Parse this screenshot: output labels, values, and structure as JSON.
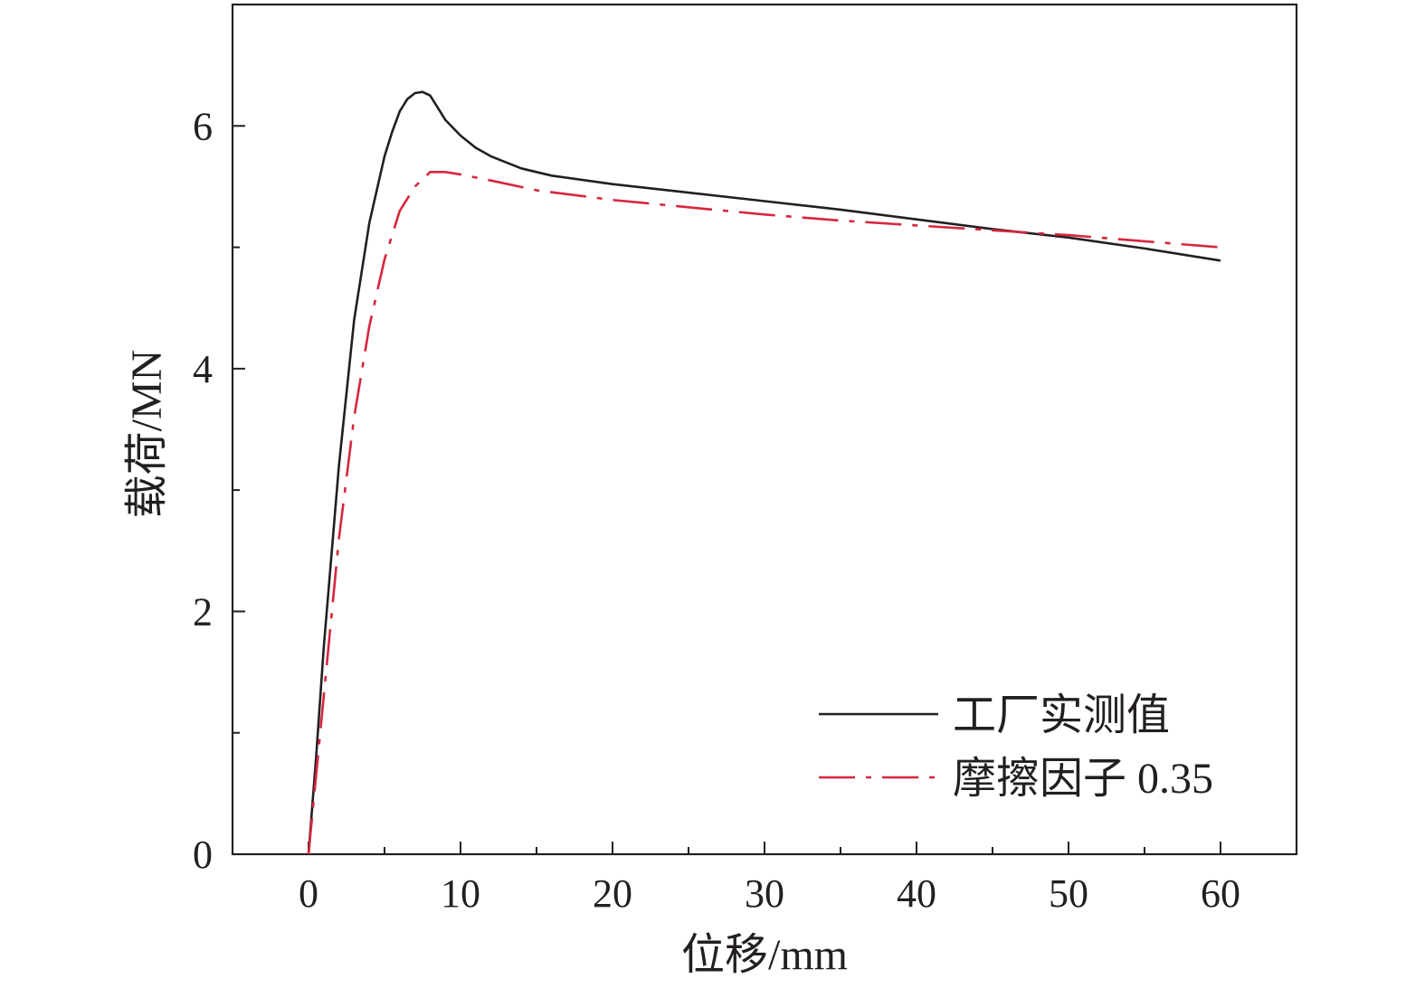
{
  "chart_data": {
    "type": "line",
    "title": "",
    "xlabel": "位移/mm",
    "ylabel": "载荷/MN",
    "xlim": [
      -5,
      65
    ],
    "ylim": [
      0,
      7
    ],
    "xticks": [
      0,
      10,
      20,
      30,
      40,
      50,
      60
    ],
    "xminor": [
      5,
      15,
      25,
      35,
      45,
      55
    ],
    "yticks": [
      0,
      2,
      4,
      6
    ],
    "yminor": [
      1,
      3,
      5
    ],
    "grid": false,
    "legend_position": "bottom-right",
    "series": [
      {
        "name": "工厂实测值",
        "color": "#231f20",
        "style": "solid",
        "x": [
          0,
          0.5,
          1,
          2,
          3,
          4,
          5,
          5.5,
          6,
          6.5,
          7,
          7.5,
          8,
          8.5,
          9,
          10,
          11,
          12,
          14,
          16,
          20,
          25,
          30,
          35,
          40,
          45,
          50,
          55,
          60
        ],
        "y": [
          0,
          0.8,
          1.7,
          3.2,
          4.4,
          5.2,
          5.75,
          5.95,
          6.12,
          6.22,
          6.27,
          6.28,
          6.25,
          6.15,
          6.05,
          5.92,
          5.82,
          5.75,
          5.65,
          5.59,
          5.52,
          5.45,
          5.38,
          5.31,
          5.23,
          5.15,
          5.08,
          4.99,
          4.89
        ]
      },
      {
        "name": "摩擦因子 0.35",
        "color": "#d7263d",
        "style": "dashdot",
        "x": [
          0,
          1,
          2,
          3,
          4,
          5,
          6,
          7,
          8,
          9,
          10,
          12,
          15,
          20,
          25,
          30,
          35,
          40,
          45,
          50,
          55,
          60
        ],
        "y": [
          0,
          1.3,
          2.6,
          3.6,
          4.35,
          4.9,
          5.3,
          5.5,
          5.62,
          5.62,
          5.6,
          5.55,
          5.47,
          5.39,
          5.33,
          5.27,
          5.22,
          5.18,
          5.14,
          5.1,
          5.05,
          5.0
        ]
      }
    ]
  }
}
